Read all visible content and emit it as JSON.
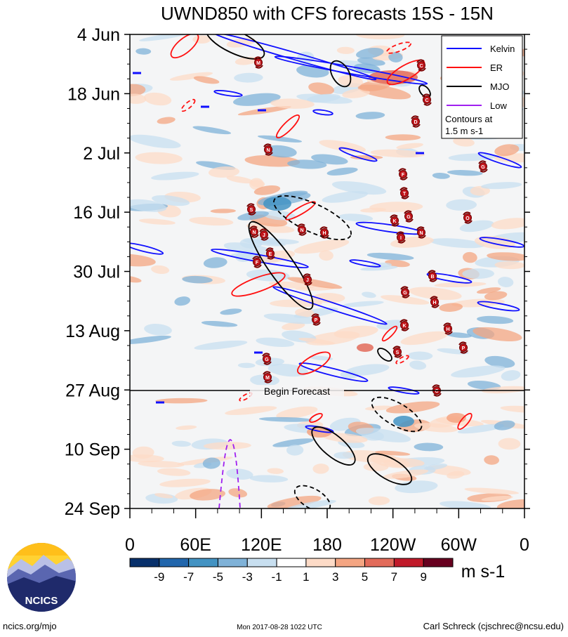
{
  "chart_data": {
    "type": "heatmap",
    "title": "UWND850 with CFS forecasts  15S - 15N",
    "y_ticks": [
      "4 Jun",
      "18 Jun",
      "2 Jul",
      "16 Jul",
      "30 Jul",
      "13 Aug",
      "27 Aug",
      "10 Sep",
      "24 Sep"
    ],
    "x_ticks": [
      "0",
      "60E",
      "120E",
      "180",
      "120W",
      "60W",
      "0"
    ],
    "xlim": [
      0,
      360
    ],
    "y_range": [
      "4 Jun",
      "24 Sep"
    ],
    "begin_forecast_label": "Begin Forecast",
    "begin_forecast_date": "27 Aug",
    "legend": {
      "placement": "top-right",
      "entries": [
        {
          "name": "Kelvin",
          "color": "#1010ff"
        },
        {
          "name": "ER",
          "color": "#ff1010"
        },
        {
          "name": "MJO",
          "color": "#000000"
        },
        {
          "name": "Low",
          "color": "#a020f0"
        }
      ],
      "note_line1": "Contours at",
      "note_line2": "1.5 m s-1"
    },
    "colorbar": {
      "levels": [
        "-9",
        "-7",
        "-5",
        "-3",
        "-1",
        "1",
        "3",
        "5",
        "7",
        "9"
      ],
      "colors": [
        "#08306b",
        "#2166ac",
        "#4393c3",
        "#7fb2d8",
        "#c8dff0",
        "#ffffff",
        "#fddbc7",
        "#f4a582",
        "#e26b5a",
        "#c01a2a",
        "#67001f"
      ],
      "units": "m s-1"
    },
    "storm_labels": [
      "M",
      "C",
      "C",
      "D",
      "N",
      "G",
      "F",
      "T",
      "S",
      "G",
      "O",
      "K",
      "N",
      "J",
      "N",
      "H",
      "N",
      "E",
      "I",
      "F",
      "B",
      "J",
      "G",
      "H",
      "P",
      "K",
      "H",
      "P",
      "G",
      "S"
    ]
  },
  "logo": {
    "text": "NCICS",
    "colors": {
      "sky": "#ffd233",
      "mountain_dark": "#1f2a6b",
      "mountain_mid": "#5a66b0",
      "mountain_light": "#b9c0e6"
    }
  },
  "footer": {
    "left": "ncics.org/mjo",
    "center": "Mon 2017-08-28 1022 UTC",
    "right": "Carl Schreck (cjschrec@ncsu.edu)"
  }
}
